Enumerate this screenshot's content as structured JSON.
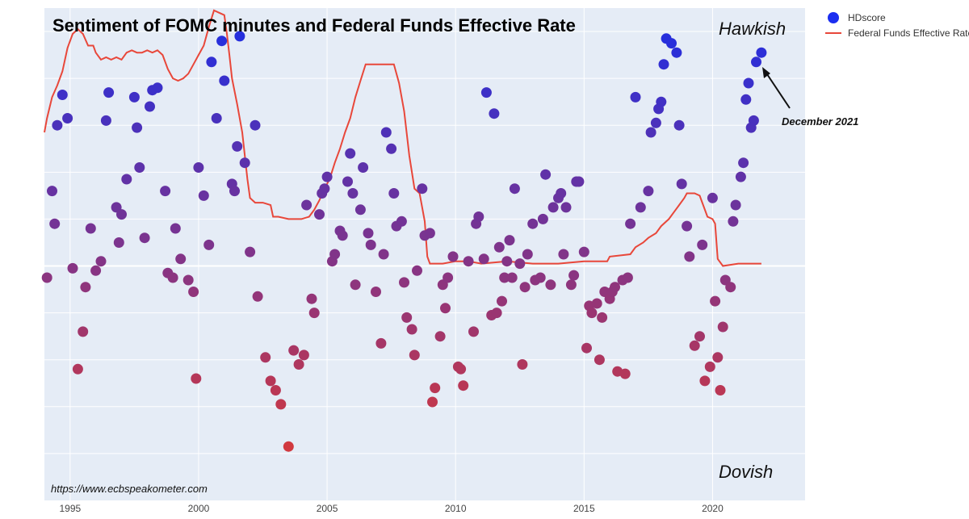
{
  "chart_data": {
    "type": "scatter",
    "title": "Sentiment of FOMC minutes and Federal Funds Effective Rate",
    "top_label": "Hawkish",
    "bottom_label": "Dovish",
    "source": "https://www.ecbspeakometer.com",
    "annotation": {
      "text": "December 2021",
      "x": 2021.9,
      "y": 0.91
    },
    "xlim": [
      1994.0,
      2023.6
    ],
    "ylim": [
      -1.0,
      1.1
    ],
    "x_ticks": [
      1995,
      2000,
      2005,
      2010,
      2015,
      2020
    ],
    "x_tick_labels": [
      "1995",
      "2000",
      "2005",
      "2010",
      "2015",
      "2020"
    ],
    "grid": true,
    "legend_position": "top-right",
    "colors": {
      "plot_bg": "#e5ecf6",
      "grid": "#ffffff",
      "line": "#e8473a",
      "dovish": "#e83a2a",
      "hawkish": "#1a2ee8",
      "legend_marker": "#1b2ef0"
    },
    "series": [
      {
        "name": "HDscore",
        "type": "scatter",
        "points": [
          [
            1994.1,
            -0.05
          ],
          [
            1994.3,
            0.32
          ],
          [
            1994.4,
            0.18
          ],
          [
            1994.5,
            0.6
          ],
          [
            1994.7,
            0.73
          ],
          [
            1994.9,
            0.63
          ],
          [
            1995.1,
            -0.01
          ],
          [
            1995.3,
            -0.44
          ],
          [
            1995.5,
            -0.28
          ],
          [
            1995.6,
            -0.09
          ],
          [
            1995.8,
            0.16
          ],
          [
            1996.0,
            -0.02
          ],
          [
            1996.2,
            0.02
          ],
          [
            1996.4,
            0.62
          ],
          [
            1996.5,
            0.74
          ],
          [
            1996.8,
            0.25
          ],
          [
            1996.9,
            0.1
          ],
          [
            1997.0,
            0.22
          ],
          [
            1997.2,
            0.37
          ],
          [
            1997.5,
            0.72
          ],
          [
            1997.6,
            0.59
          ],
          [
            1997.7,
            0.42
          ],
          [
            1997.9,
            0.12
          ],
          [
            1998.1,
            0.68
          ],
          [
            1998.2,
            0.75
          ],
          [
            1998.4,
            0.76
          ],
          [
            1998.7,
            0.32
          ],
          [
            1998.8,
            -0.03
          ],
          [
            1999.0,
            -0.05
          ],
          [
            1999.1,
            0.16
          ],
          [
            1999.3,
            0.03
          ],
          [
            1999.6,
            -0.06
          ],
          [
            1999.8,
            -0.11
          ],
          [
            1999.9,
            -0.48
          ],
          [
            2000.0,
            0.42
          ],
          [
            2000.2,
            0.3
          ],
          [
            2000.4,
            0.09
          ],
          [
            2000.5,
            0.87
          ],
          [
            2000.7,
            0.63
          ],
          [
            2000.9,
            0.96
          ],
          [
            2001.0,
            0.79
          ],
          [
            2001.3,
            0.35
          ],
          [
            2001.4,
            0.32
          ],
          [
            2001.5,
            0.51
          ],
          [
            2001.6,
            0.98
          ],
          [
            2001.8,
            0.44
          ],
          [
            2002.0,
            0.06
          ],
          [
            2002.2,
            0.6
          ],
          [
            2002.3,
            -0.13
          ],
          [
            2002.6,
            -0.39
          ],
          [
            2002.8,
            -0.49
          ],
          [
            2003.0,
            -0.53
          ],
          [
            2003.2,
            -0.59
          ],
          [
            2003.5,
            -0.77
          ],
          [
            2003.7,
            -0.36
          ],
          [
            2003.9,
            -0.42
          ],
          [
            2004.1,
            -0.38
          ],
          [
            2004.2,
            0.26
          ],
          [
            2004.4,
            -0.14
          ],
          [
            2004.5,
            -0.2
          ],
          [
            2004.7,
            0.22
          ],
          [
            2004.8,
            0.31
          ],
          [
            2004.9,
            0.33
          ],
          [
            2005.0,
            0.38
          ],
          [
            2005.2,
            0.02
          ],
          [
            2005.3,
            0.05
          ],
          [
            2005.5,
            0.15
          ],
          [
            2005.6,
            0.13
          ],
          [
            2005.8,
            0.36
          ],
          [
            2005.9,
            0.48
          ],
          [
            2006.0,
            0.31
          ],
          [
            2006.1,
            -0.08
          ],
          [
            2006.3,
            0.24
          ],
          [
            2006.4,
            0.42
          ],
          [
            2006.6,
            0.14
          ],
          [
            2006.7,
            0.09
          ],
          [
            2006.9,
            -0.11
          ],
          [
            2007.1,
            -0.33
          ],
          [
            2007.2,
            0.05
          ],
          [
            2007.3,
            0.57
          ],
          [
            2007.5,
            0.5
          ],
          [
            2007.6,
            0.31
          ],
          [
            2007.7,
            0.17
          ],
          [
            2007.9,
            0.19
          ],
          [
            2008.0,
            -0.07
          ],
          [
            2008.1,
            -0.22
          ],
          [
            2008.3,
            -0.27
          ],
          [
            2008.4,
            -0.38
          ],
          [
            2008.5,
            -0.02
          ],
          [
            2008.7,
            0.33
          ],
          [
            2008.8,
            0.13
          ],
          [
            2009.0,
            0.14
          ],
          [
            2009.1,
            -0.58
          ],
          [
            2009.2,
            -0.52
          ],
          [
            2009.4,
            -0.3
          ],
          [
            2009.5,
            -0.08
          ],
          [
            2009.6,
            -0.18
          ],
          [
            2009.7,
            -0.05
          ],
          [
            2009.9,
            0.04
          ],
          [
            2010.1,
            -0.43
          ],
          [
            2010.2,
            -0.44
          ],
          [
            2010.3,
            -0.51
          ],
          [
            2010.5,
            0.02
          ],
          [
            2010.7,
            -0.28
          ],
          [
            2010.8,
            0.18
          ],
          [
            2010.9,
            0.21
          ],
          [
            2011.1,
            0.03
          ],
          [
            2011.2,
            0.74
          ],
          [
            2011.4,
            -0.21
          ],
          [
            2011.5,
            0.65
          ],
          [
            2011.6,
            -0.2
          ],
          [
            2011.7,
            0.08
          ],
          [
            2011.8,
            -0.15
          ],
          [
            2011.9,
            -0.05
          ],
          [
            2012.0,
            0.02
          ],
          [
            2012.1,
            0.11
          ],
          [
            2012.2,
            -0.05
          ],
          [
            2012.3,
            0.33
          ],
          [
            2012.5,
            0.01
          ],
          [
            2012.6,
            -0.42
          ],
          [
            2012.7,
            -0.09
          ],
          [
            2012.8,
            0.05
          ],
          [
            2013.0,
            0.18
          ],
          [
            2013.1,
            -0.06
          ],
          [
            2013.3,
            -0.05
          ],
          [
            2013.4,
            0.2
          ],
          [
            2013.5,
            0.39
          ],
          [
            2013.7,
            -0.08
          ],
          [
            2013.8,
            0.25
          ],
          [
            2014.0,
            0.29
          ],
          [
            2014.1,
            0.31
          ],
          [
            2014.2,
            0.05
          ],
          [
            2014.3,
            0.25
          ],
          [
            2014.5,
            -0.08
          ],
          [
            2014.6,
            -0.04
          ],
          [
            2014.7,
            0.36
          ],
          [
            2014.8,
            0.36
          ],
          [
            2015.0,
            0.06
          ],
          [
            2015.1,
            -0.35
          ],
          [
            2015.2,
            -0.17
          ],
          [
            2015.3,
            -0.2
          ],
          [
            2015.5,
            -0.16
          ],
          [
            2015.6,
            -0.4
          ],
          [
            2015.7,
            -0.22
          ],
          [
            2015.8,
            -0.11
          ],
          [
            2016.0,
            -0.14
          ],
          [
            2016.1,
            -0.11
          ],
          [
            2016.2,
            -0.09
          ],
          [
            2016.3,
            -0.45
          ],
          [
            2016.5,
            -0.06
          ],
          [
            2016.6,
            -0.46
          ],
          [
            2016.7,
            -0.05
          ],
          [
            2016.8,
            0.18
          ],
          [
            2017.0,
            0.72
          ],
          [
            2017.2,
            0.25
          ],
          [
            2017.5,
            0.32
          ],
          [
            2017.6,
            0.57
          ],
          [
            2017.8,
            0.61
          ],
          [
            2017.9,
            0.67
          ],
          [
            2018.0,
            0.7
          ],
          [
            2018.1,
            0.86
          ],
          [
            2018.2,
            0.97
          ],
          [
            2018.4,
            0.95
          ],
          [
            2018.6,
            0.91
          ],
          [
            2018.7,
            0.6
          ],
          [
            2018.8,
            0.35
          ],
          [
            2019.0,
            0.17
          ],
          [
            2019.1,
            0.04
          ],
          [
            2019.3,
            -0.34
          ],
          [
            2019.5,
            -0.3
          ],
          [
            2019.6,
            0.09
          ],
          [
            2019.7,
            -0.49
          ],
          [
            2019.9,
            -0.43
          ],
          [
            2020.0,
            0.29
          ],
          [
            2020.1,
            -0.15
          ],
          [
            2020.2,
            -0.39
          ],
          [
            2020.3,
            -0.53
          ],
          [
            2020.4,
            -0.26
          ],
          [
            2020.5,
            -0.06
          ],
          [
            2020.7,
            -0.09
          ],
          [
            2020.8,
            0.19
          ],
          [
            2020.9,
            0.26
          ],
          [
            2021.1,
            0.38
          ],
          [
            2021.2,
            0.44
          ],
          [
            2021.3,
            0.71
          ],
          [
            2021.4,
            0.78
          ],
          [
            2021.5,
            0.59
          ],
          [
            2021.6,
            0.62
          ],
          [
            2021.7,
            0.87
          ],
          [
            2021.9,
            0.91
          ]
        ]
      },
      {
        "name": "Federal Funds Effective Rate",
        "type": "line",
        "points": [
          [
            1994.0,
            0.57
          ],
          [
            1994.1,
            0.63
          ],
          [
            1994.3,
            0.72
          ],
          [
            1994.5,
            0.77
          ],
          [
            1994.7,
            0.83
          ],
          [
            1994.9,
            0.93
          ],
          [
            1995.1,
            0.99
          ],
          [
            1995.3,
            1.01
          ],
          [
            1995.5,
            0.99
          ],
          [
            1995.7,
            0.94
          ],
          [
            1995.9,
            0.94
          ],
          [
            1996.0,
            0.91
          ],
          [
            1996.2,
            0.88
          ],
          [
            1996.4,
            0.89
          ],
          [
            1996.6,
            0.88
          ],
          [
            1996.8,
            0.89
          ],
          [
            1997.0,
            0.88
          ],
          [
            1997.2,
            0.91
          ],
          [
            1997.4,
            0.92
          ],
          [
            1997.6,
            0.91
          ],
          [
            1997.8,
            0.91
          ],
          [
            1998.0,
            0.92
          ],
          [
            1998.2,
            0.91
          ],
          [
            1998.4,
            0.92
          ],
          [
            1998.6,
            0.9
          ],
          [
            1998.8,
            0.84
          ],
          [
            1999.0,
            0.8
          ],
          [
            1999.2,
            0.79
          ],
          [
            1999.4,
            0.8
          ],
          [
            1999.6,
            0.82
          ],
          [
            1999.8,
            0.86
          ],
          [
            2000.0,
            0.9
          ],
          [
            2000.2,
            0.94
          ],
          [
            2000.4,
            1.02
          ],
          [
            2000.6,
            1.09
          ],
          [
            2000.8,
            1.08
          ],
          [
            2001.0,
            1.07
          ],
          [
            2001.1,
            0.99
          ],
          [
            2001.2,
            0.9
          ],
          [
            2001.3,
            0.8
          ],
          [
            2001.5,
            0.69
          ],
          [
            2001.7,
            0.57
          ],
          [
            2001.9,
            0.37
          ],
          [
            2002.0,
            0.29
          ],
          [
            2002.2,
            0.27
          ],
          [
            2002.5,
            0.27
          ],
          [
            2002.8,
            0.26
          ],
          [
            2002.9,
            0.21
          ],
          [
            2003.1,
            0.21
          ],
          [
            2003.5,
            0.2
          ],
          [
            2003.8,
            0.2
          ],
          [
            2004.0,
            0.2
          ],
          [
            2004.3,
            0.21
          ],
          [
            2004.5,
            0.24
          ],
          [
            2004.7,
            0.28
          ],
          [
            2004.9,
            0.33
          ],
          [
            2005.1,
            0.37
          ],
          [
            2005.3,
            0.44
          ],
          [
            2005.5,
            0.5
          ],
          [
            2005.7,
            0.57
          ],
          [
            2005.9,
            0.63
          ],
          [
            2006.1,
            0.72
          ],
          [
            2006.3,
            0.79
          ],
          [
            2006.5,
            0.86
          ],
          [
            2006.8,
            0.86
          ],
          [
            2007.1,
            0.86
          ],
          [
            2007.4,
            0.86
          ],
          [
            2007.6,
            0.86
          ],
          [
            2007.8,
            0.78
          ],
          [
            2008.0,
            0.66
          ],
          [
            2008.2,
            0.47
          ],
          [
            2008.4,
            0.33
          ],
          [
            2008.6,
            0.31
          ],
          [
            2008.8,
            0.19
          ],
          [
            2008.9,
            0.04
          ],
          [
            2009.0,
            0.01
          ],
          [
            2009.5,
            0.01
          ],
          [
            2010.0,
            0.02
          ],
          [
            2010.5,
            0.02
          ],
          [
            2011.0,
            0.01
          ],
          [
            2012.0,
            0.02
          ],
          [
            2013.0,
            0.01
          ],
          [
            2014.0,
            0.01
          ],
          [
            2015.0,
            0.02
          ],
          [
            2015.9,
            0.02
          ],
          [
            2016.0,
            0.04
          ],
          [
            2016.8,
            0.05
          ],
          [
            2017.0,
            0.08
          ],
          [
            2017.3,
            0.1
          ],
          [
            2017.5,
            0.12
          ],
          [
            2017.8,
            0.14
          ],
          [
            2018.0,
            0.17
          ],
          [
            2018.3,
            0.2
          ],
          [
            2018.5,
            0.23
          ],
          [
            2018.7,
            0.26
          ],
          [
            2018.9,
            0.29
          ],
          [
            2019.0,
            0.31
          ],
          [
            2019.3,
            0.31
          ],
          [
            2019.5,
            0.3
          ],
          [
            2019.6,
            0.27
          ],
          [
            2019.8,
            0.21
          ],
          [
            2020.0,
            0.2
          ],
          [
            2020.1,
            0.18
          ],
          [
            2020.2,
            0.03
          ],
          [
            2020.4,
            0.0
          ],
          [
            2021.0,
            0.01
          ],
          [
            2021.5,
            0.01
          ],
          [
            2021.9,
            0.01
          ]
        ]
      }
    ]
  }
}
